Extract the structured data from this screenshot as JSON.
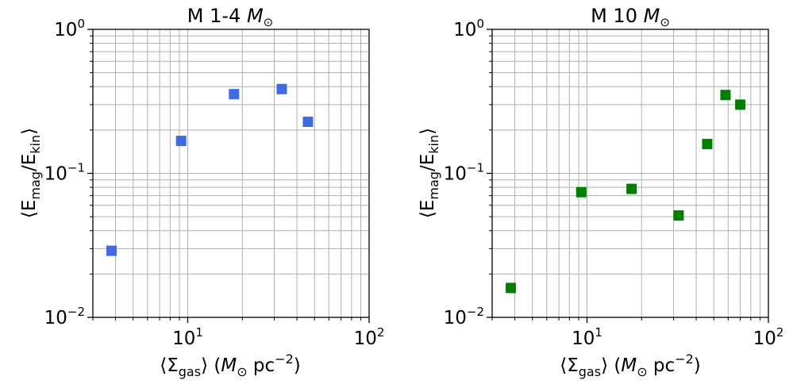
{
  "chart_data": [
    {
      "type": "scatter",
      "title": "M 1-4",
      "title_unit": "M",
      "title_unit_sub": "⊙",
      "xscale": "log",
      "yscale": "log",
      "xlim": [
        3,
        100
      ],
      "ylim": [
        0.01,
        1
      ],
      "grid": true,
      "color": "#4169e1",
      "marker": "square",
      "xlabel": {
        "pre": "⟨Σ",
        "sub": "gas",
        "post": "⟩ (",
        "unit": "M",
        "unit_sub": "⊙",
        "tail": " pc",
        "sup": "−2",
        "end": ")"
      },
      "ylabel": {
        "pre": "⟨E",
        "sub1": "mag",
        "mid": "/E",
        "sub2": "kin",
        "end": "⟩"
      },
      "x_ticks": [
        {
          "value": 10,
          "base": "10",
          "exp": "1"
        },
        {
          "value": 100,
          "base": "10",
          "exp": "2"
        }
      ],
      "y_ticks": [
        {
          "value": 0.01,
          "base": "10",
          "exp": "−2"
        },
        {
          "value": 0.1,
          "base": "10",
          "exp": "−1"
        },
        {
          "value": 1,
          "base": "10",
          "exp": "0"
        }
      ],
      "points": [
        {
          "x": 3.8,
          "y": 0.029
        },
        {
          "x": 9.2,
          "y": 0.168
        },
        {
          "x": 18,
          "y": 0.355
        },
        {
          "x": 33,
          "y": 0.385
        },
        {
          "x": 46,
          "y": 0.228
        }
      ]
    },
    {
      "type": "scatter",
      "title": "M 10",
      "title_unit": "M",
      "title_unit_sub": "⊙",
      "xscale": "log",
      "yscale": "log",
      "xlim": [
        3,
        100
      ],
      "ylim": [
        0.01,
        1
      ],
      "grid": true,
      "color": "#008000",
      "marker": "square",
      "xlabel": {
        "pre": "⟨Σ",
        "sub": "gas",
        "post": "⟩ (",
        "unit": "M",
        "unit_sub": "⊙",
        "tail": " pc",
        "sup": "−2",
        "end": ")"
      },
      "ylabel": {
        "pre": "⟨E",
        "sub1": "mag",
        "mid": "/E",
        "sub2": "kin",
        "end": "⟩"
      },
      "x_ticks": [
        {
          "value": 10,
          "base": "10",
          "exp": "1"
        },
        {
          "value": 100,
          "base": "10",
          "exp": "2"
        }
      ],
      "y_ticks": [
        {
          "value": 0.01,
          "base": "10",
          "exp": "−2"
        },
        {
          "value": 0.1,
          "base": "10",
          "exp": "−1"
        },
        {
          "value": 1,
          "base": "10",
          "exp": "0"
        }
      ],
      "points": [
        {
          "x": 3.8,
          "y": 0.016
        },
        {
          "x": 9.3,
          "y": 0.074
        },
        {
          "x": 17.6,
          "y": 0.078
        },
        {
          "x": 32,
          "y": 0.051
        },
        {
          "x": 46,
          "y": 0.16
        },
        {
          "x": 58,
          "y": 0.35
        },
        {
          "x": 70,
          "y": 0.3
        }
      ]
    }
  ]
}
